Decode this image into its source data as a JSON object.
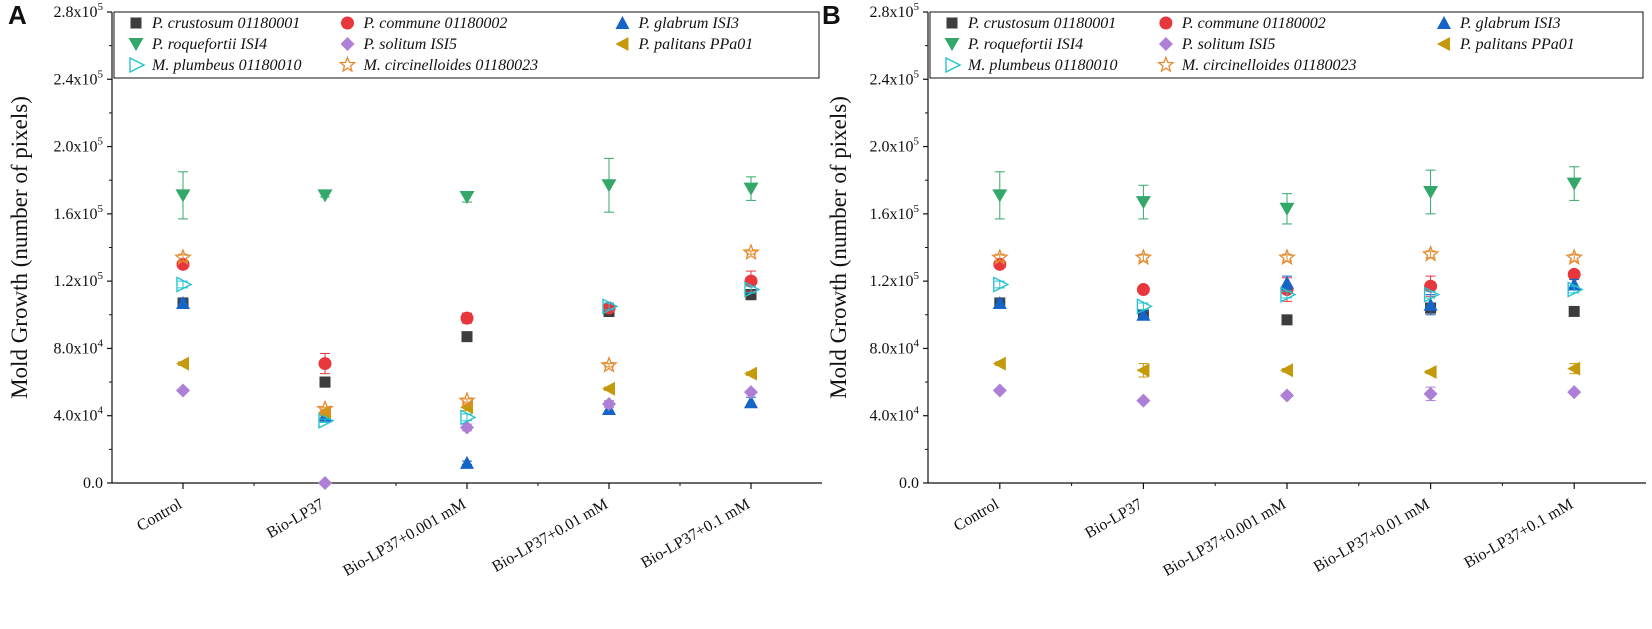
{
  "chart_data": [
    {
      "type": "scatter",
      "panel": "A",
      "ylabel": "Mold Growth (number of pixels)",
      "xlabel": "",
      "categories": [
        "Control",
        "Bio-LP37",
        "Bio-LP37+0.001 mM",
        "Bio-LP37+0.01 mM",
        "Bio-LP37+0.1 mM"
      ],
      "ylim": [
        0,
        280000
      ],
      "yticks": [
        {
          "value": 0,
          "label": "0.0",
          "exp": ""
        },
        {
          "value": 40000,
          "label": "4.0x10",
          "exp": "4"
        },
        {
          "value": 80000,
          "label": "8.0x10",
          "exp": "4"
        },
        {
          "value": 120000,
          "label": "1.2x10",
          "exp": "5"
        },
        {
          "value": 160000,
          "label": "1.6x10",
          "exp": "5"
        },
        {
          "value": 200000,
          "label": "2.0x10",
          "exp": "5"
        },
        {
          "value": 240000,
          "label": "2.4x10",
          "exp": "5"
        },
        {
          "value": 280000,
          "label": "2.8x10",
          "exp": "5"
        }
      ],
      "series": [
        {
          "name": "P. crustosum 01180001",
          "marker": "square",
          "color": "#3d3d3d",
          "values": [
            107000,
            60000,
            87000,
            102000,
            112000
          ],
          "errors": [
            3000,
            3000,
            2000,
            3000,
            3000
          ]
        },
        {
          "name": "P. commune 01180002",
          "marker": "circle",
          "color": "#e8373c",
          "values": [
            130000,
            71000,
            98000,
            104000,
            120000
          ],
          "errors": [
            2000,
            6000,
            3000,
            2000,
            6000
          ]
        },
        {
          "name": "P. glabrum ISI3",
          "marker": "triangle-up",
          "color": "#1565c8",
          "values": [
            107000,
            40000,
            12000,
            44000,
            48000
          ],
          "errors": [
            2000,
            2000,
            1000,
            2000,
            3000
          ]
        },
        {
          "name": "P. roquefortii ISI4",
          "marker": "triangle-down",
          "color": "#33a86a",
          "values": [
            171000,
            171000,
            170000,
            177000,
            175000
          ],
          "errors": [
            14000,
            1000,
            3000,
            16000,
            7000
          ]
        },
        {
          "name": "P. solitum ISI5",
          "marker": "diamond",
          "color": "#ad7fd6",
          "values": [
            55000,
            0,
            33000,
            47000,
            54000
          ],
          "errors": [
            1000,
            0,
            2000,
            2000,
            1000
          ]
        },
        {
          "name": "P. palitans PPa01",
          "marker": "triangle-left",
          "color": "#c4990a",
          "values": [
            71000,
            42000,
            45000,
            56000,
            65000
          ],
          "errors": [
            1000,
            2000,
            2000,
            1000,
            1000
          ]
        },
        {
          "name": "M. plumbeus 01180010",
          "marker": "triangle-right",
          "color": "#27c2cf",
          "values": [
            118000,
            37000,
            39000,
            105000,
            115000
          ],
          "errors": [
            2000,
            1000,
            2000,
            2000,
            2000
          ]
        },
        {
          "name": "M. circinelloides 01180023",
          "marker": "star",
          "color": "#e68a2e",
          "values": [
            134000,
            44000,
            49000,
            70000,
            137000
          ],
          "errors": [
            2000,
            1000,
            1000,
            1000,
            1000
          ]
        }
      ]
    },
    {
      "type": "scatter",
      "panel": "B",
      "ylabel": "Mold Growth (number of pixels)",
      "xlabel": "",
      "categories": [
        "Control",
        "Bio-LP37",
        "Bio-LP37+0.001 mM",
        "Bio-LP37+0.01 mM",
        "Bio-LP37+0.1 mM"
      ],
      "ylim": [
        0,
        280000
      ],
      "yticks": [
        {
          "value": 0,
          "label": "0.0",
          "exp": ""
        },
        {
          "value": 40000,
          "label": "4.0x10",
          "exp": "4"
        },
        {
          "value": 80000,
          "label": "8.0x10",
          "exp": "4"
        },
        {
          "value": 120000,
          "label": "1.2x10",
          "exp": "5"
        },
        {
          "value": 160000,
          "label": "1.6x10",
          "exp": "5"
        },
        {
          "value": 200000,
          "label": "2.0x10",
          "exp": "5"
        },
        {
          "value": 240000,
          "label": "2.4x10",
          "exp": "5"
        },
        {
          "value": 280000,
          "label": "2.8x10",
          "exp": "5"
        }
      ],
      "series": [
        {
          "name": "P. crustosum 01180001",
          "marker": "square",
          "color": "#3d3d3d",
          "values": [
            107000,
            100000,
            97000,
            104000,
            102000
          ],
          "errors": [
            3000,
            2000,
            1000,
            3000,
            1000
          ]
        },
        {
          "name": "P. commune 01180002",
          "marker": "circle",
          "color": "#e8373c",
          "values": [
            130000,
            115000,
            115000,
            117000,
            124000
          ],
          "errors": [
            2000,
            1000,
            7000,
            6000,
            2000
          ]
        },
        {
          "name": "P. glabrum ISI3",
          "marker": "triangle-up",
          "color": "#1565c8",
          "values": [
            107000,
            100000,
            119000,
            106000,
            118000
          ],
          "errors": [
            2000,
            2000,
            4000,
            6000,
            3000
          ]
        },
        {
          "name": "P. roquefortii ISI4",
          "marker": "triangle-down",
          "color": "#33a86a",
          "values": [
            171000,
            167000,
            163000,
            173000,
            178000
          ],
          "errors": [
            14000,
            10000,
            9000,
            13000,
            10000
          ]
        },
        {
          "name": "P. solitum ISI5",
          "marker": "diamond",
          "color": "#ad7fd6",
          "values": [
            55000,
            49000,
            52000,
            53000,
            54000
          ],
          "errors": [
            1000,
            1000,
            1000,
            4000,
            1000
          ]
        },
        {
          "name": "P. palitans PPa01",
          "marker": "triangle-left",
          "color": "#c4990a",
          "values": [
            71000,
            67000,
            67000,
            66000,
            68000
          ],
          "errors": [
            1000,
            4000,
            1000,
            1000,
            3000
          ]
        },
        {
          "name": "M. plumbeus 01180010",
          "marker": "triangle-right",
          "color": "#27c2cf",
          "values": [
            118000,
            105000,
            112000,
            112000,
            115000
          ],
          "errors": [
            2000,
            2000,
            2000,
            2000,
            2000
          ]
        },
        {
          "name": "M. circinelloides 01180023",
          "marker": "star",
          "color": "#e68a2e",
          "values": [
            134000,
            134000,
            134000,
            136000,
            134000
          ],
          "errors": [
            2000,
            2000,
            2000,
            2000,
            2000
          ]
        }
      ]
    }
  ]
}
